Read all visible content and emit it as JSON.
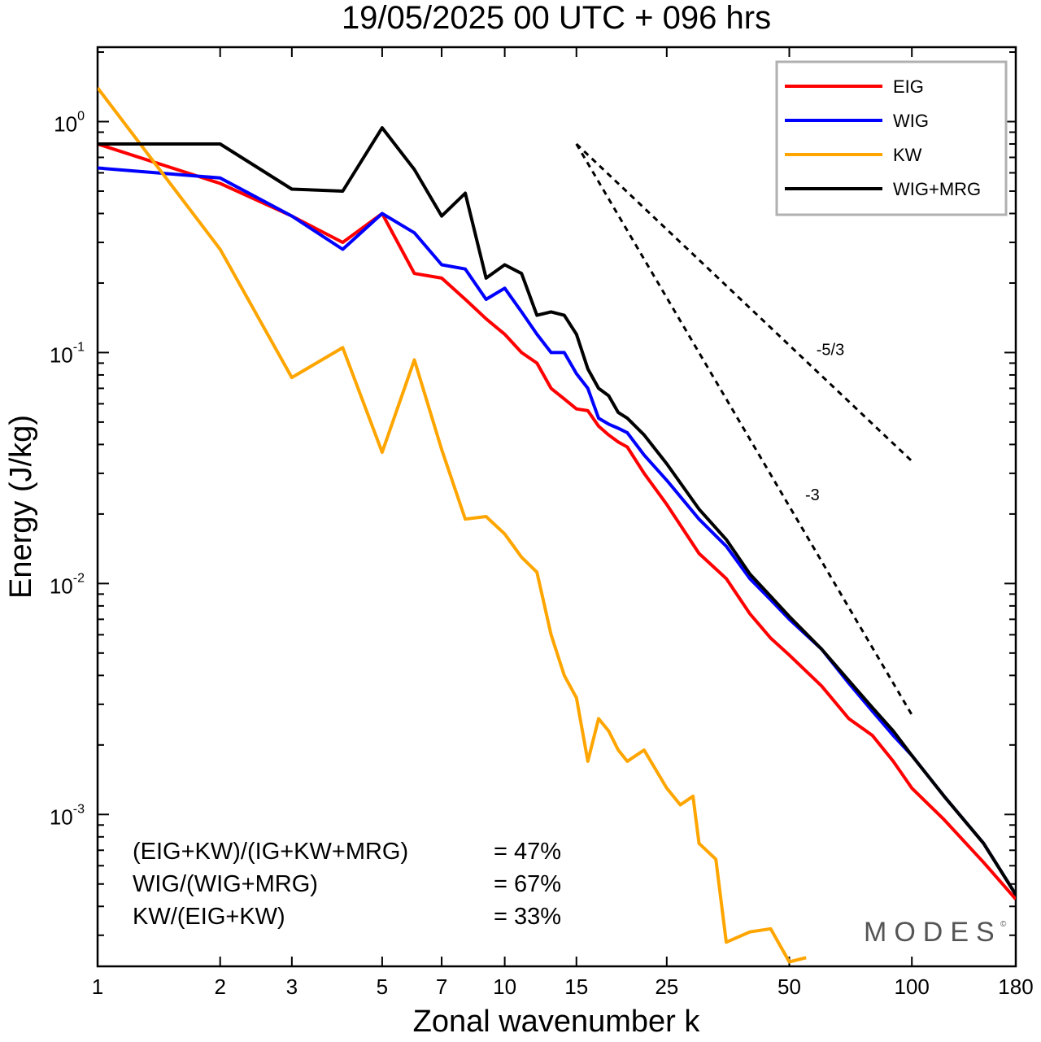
{
  "chart_data": {
    "type": "line",
    "title": "19/05/2025  00 UTC  + 096 hrs",
    "xlabel": "Zonal wavenumber k",
    "ylabel": "Energy (J/kg)",
    "x_scale": "log",
    "y_scale": "log",
    "xlim": [
      1,
      180
    ],
    "ylim": [
      0.00022,
      2.1
    ],
    "x_ticks": [
      1,
      2,
      3,
      5,
      7,
      10,
      15,
      25,
      50,
      100,
      180
    ],
    "x_tick_labels": [
      "1",
      "2",
      "3",
      "5",
      "7",
      "10",
      "15",
      "25",
      "50",
      "100",
      "180"
    ],
    "y_ticks": [
      1,
      0.1,
      0.01,
      0.001
    ],
    "y_tick_labels": [
      {
        "base": "10",
        "exp": "0"
      },
      {
        "base": "10",
        "exp": "-1"
      },
      {
        "base": "10",
        "exp": "-2"
      },
      {
        "base": "10",
        "exp": "-3"
      }
    ],
    "legend_position": "top-right",
    "series": [
      {
        "name": "EIG",
        "color": "#ff0000",
        "x": [
          1,
          2,
          3,
          4,
          5,
          6,
          7,
          8,
          9,
          10,
          11,
          12,
          13,
          14,
          15,
          16,
          17,
          18,
          19,
          20,
          22,
          25,
          30,
          35,
          40,
          45,
          50,
          60,
          70,
          80,
          90,
          100,
          120,
          150,
          180
        ],
        "y": [
          0.8,
          0.54,
          0.39,
          0.3,
          0.4,
          0.22,
          0.21,
          0.17,
          0.14,
          0.12,
          0.1,
          0.09,
          0.07,
          0.063,
          0.057,
          0.056,
          0.048,
          0.044,
          0.041,
          0.039,
          0.03,
          0.022,
          0.0135,
          0.0105,
          0.0074,
          0.0058,
          0.0049,
          0.0036,
          0.0026,
          0.0022,
          0.0017,
          0.0013,
          0.00095,
          0.00062,
          0.00043
        ]
      },
      {
        "name": "WIG",
        "color": "#0000ff",
        "x": [
          1,
          2,
          3,
          4,
          5,
          6,
          7,
          8,
          9,
          10,
          11,
          12,
          13,
          14,
          15,
          16,
          17,
          18,
          19,
          20,
          22,
          25,
          30,
          35,
          40,
          45,
          50,
          60,
          70,
          80,
          90,
          100,
          120,
          150,
          180
        ],
        "y": [
          0.63,
          0.57,
          0.39,
          0.28,
          0.4,
          0.33,
          0.24,
          0.23,
          0.17,
          0.19,
          0.15,
          0.12,
          0.1,
          0.1,
          0.081,
          0.07,
          0.052,
          0.049,
          0.047,
          0.045,
          0.036,
          0.028,
          0.019,
          0.0145,
          0.0105,
          0.0085,
          0.007,
          0.0052,
          0.0037,
          0.0028,
          0.0022,
          0.0018,
          0.0012,
          0.00075,
          0.00045
        ]
      },
      {
        "name": "KW",
        "color": "#ffa500",
        "x": [
          1,
          2,
          3,
          4,
          5,
          6,
          7,
          8,
          9,
          10,
          11,
          12,
          13,
          14,
          15,
          16,
          17,
          18,
          19,
          20,
          22,
          25,
          27,
          29,
          30,
          33,
          35,
          40,
          45,
          50,
          55
        ],
        "y": [
          1.4,
          0.28,
          0.078,
          0.105,
          0.037,
          0.093,
          0.038,
          0.019,
          0.0195,
          0.0164,
          0.013,
          0.0112,
          0.006,
          0.004,
          0.0032,
          0.0017,
          0.0026,
          0.0023,
          0.0019,
          0.0017,
          0.0019,
          0.0013,
          0.0011,
          0.0012,
          0.00075,
          0.00064,
          0.00028,
          0.00031,
          0.00032,
          0.00023,
          0.00024
        ]
      },
      {
        "name": "WIG+MRG",
        "color": "#000000",
        "x": [
          1,
          2,
          3,
          4,
          5,
          6,
          7,
          8,
          9,
          10,
          11,
          12,
          13,
          14,
          15,
          16,
          17,
          18,
          19,
          20,
          22,
          25,
          30,
          35,
          40,
          45,
          50,
          60,
          70,
          80,
          90,
          100,
          120,
          150,
          180
        ],
        "y": [
          0.8,
          0.8,
          0.51,
          0.5,
          0.94,
          0.62,
          0.39,
          0.49,
          0.21,
          0.24,
          0.22,
          0.145,
          0.15,
          0.145,
          0.12,
          0.085,
          0.07,
          0.065,
          0.055,
          0.052,
          0.044,
          0.033,
          0.021,
          0.0155,
          0.011,
          0.0088,
          0.0072,
          0.0052,
          0.0038,
          0.0029,
          0.0023,
          0.0018,
          0.0012,
          0.00075,
          0.00045
        ]
      }
    ],
    "slope_guides": [
      {
        "label": "-5/3",
        "slope": -1.6667,
        "x_start": 15,
        "y_start": 0.8,
        "x_end": 100
      },
      {
        "label": "-3",
        "slope": -3,
        "x_start": 15,
        "y_start": 0.8,
        "x_end": 100
      }
    ],
    "annotations": [
      {
        "label": "(EIG+KW)/(IG+KW+MRG)",
        "value": "= 47%"
      },
      {
        "label": "WIG/(WIG+MRG)",
        "value": "= 67%"
      },
      {
        "label": "KW/(EIG+KW)",
        "value": "= 33%"
      }
    ],
    "watermark": "MODES",
    "watermark_mark": "©"
  }
}
